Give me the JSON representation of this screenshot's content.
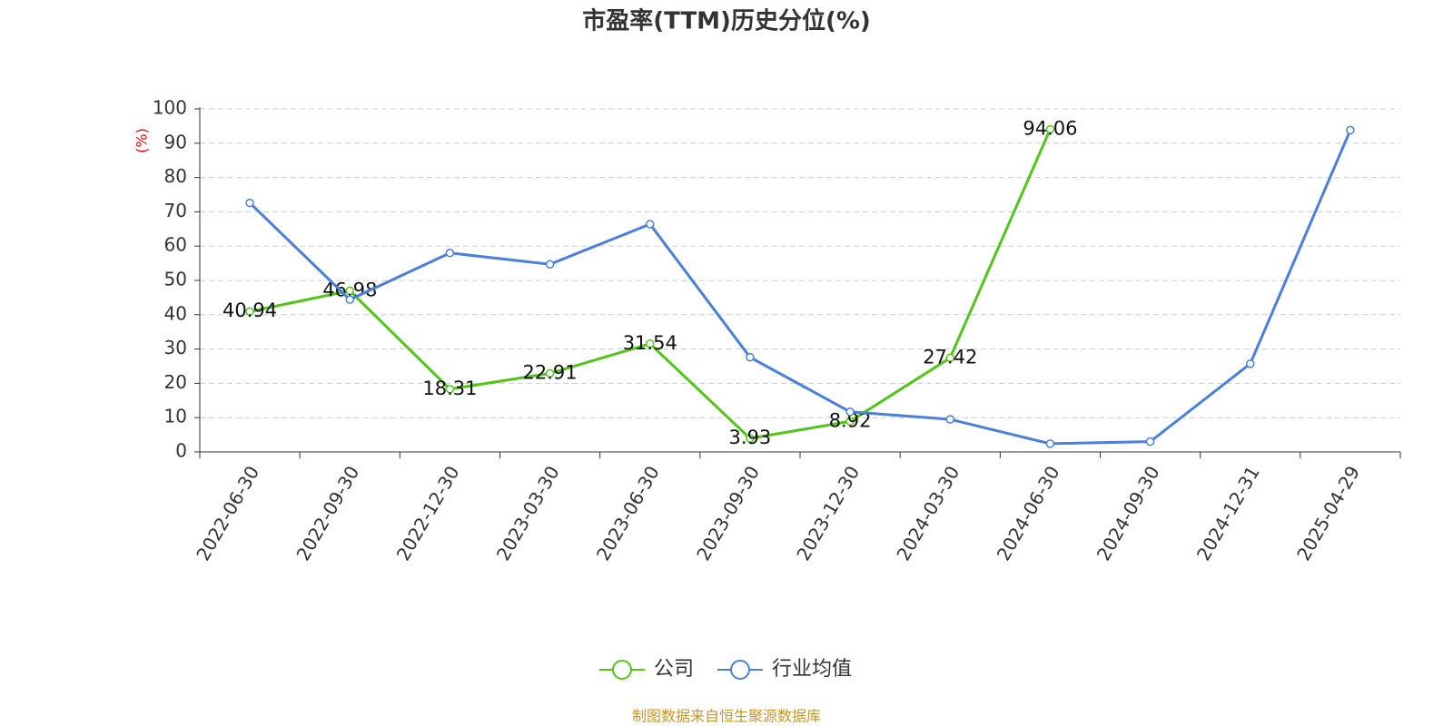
{
  "chart_data": {
    "type": "line",
    "title": "市盈率(TTM)历史分位(%)",
    "y_label": "(%)",
    "categories": [
      "2022-06-30",
      "2022-09-30",
      "2022-12-30",
      "2023-03-30",
      "2023-06-30",
      "2023-09-30",
      "2023-12-30",
      "2024-03-30",
      "2024-06-30",
      "2024-09-30",
      "2024-12-31",
      "2025-04-29"
    ],
    "series": [
      {
        "name": "公司",
        "color": "#52c41a",
        "values": [
          40.94,
          46.98,
          18.31,
          22.91,
          31.54,
          3.93,
          8.92,
          27.42,
          94.06,
          null,
          null,
          null
        ],
        "show_labels": true
      },
      {
        "name": "行业均值",
        "color": "#4a7fdc",
        "values": [
          72.6,
          44.4,
          58.0,
          54.7,
          66.4,
          27.6,
          11.7,
          9.5,
          2.4,
          3.0,
          25.7,
          93.8
        ],
        "show_labels": false
      }
    ],
    "ylim": [
      0,
      100
    ],
    "yticks": [
      0,
      10,
      20,
      30,
      40,
      50,
      60,
      70,
      80,
      90,
      100
    ],
    "grid": true,
    "source": "制图数据来自恒生聚源数据库"
  }
}
